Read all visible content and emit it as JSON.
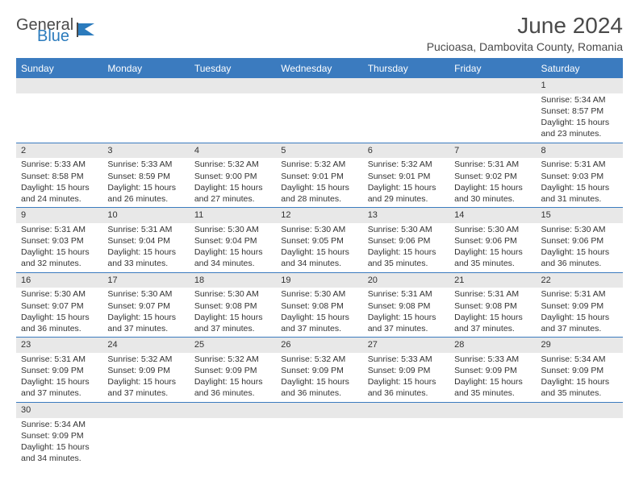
{
  "logo": {
    "general": "General",
    "blue": "Blue"
  },
  "title": "June 2024",
  "subtitle": "Pucioasa, Dambovita County, Romania",
  "header_bg": "#3b7bbf",
  "header_fg": "#ffffff",
  "daynum_bg": "#e8e8e8",
  "rule_color": "#3b7bbf",
  "days": [
    "Sunday",
    "Monday",
    "Tuesday",
    "Wednesday",
    "Thursday",
    "Friday",
    "Saturday"
  ],
  "weeks": [
    [
      null,
      null,
      null,
      null,
      null,
      null,
      {
        "n": "1",
        "sr": "5:34 AM",
        "ss": "8:57 PM",
        "dl": "15 hours and 23 minutes."
      }
    ],
    [
      {
        "n": "2",
        "sr": "5:33 AM",
        "ss": "8:58 PM",
        "dl": "15 hours and 24 minutes."
      },
      {
        "n": "3",
        "sr": "5:33 AM",
        "ss": "8:59 PM",
        "dl": "15 hours and 26 minutes."
      },
      {
        "n": "4",
        "sr": "5:32 AM",
        "ss": "9:00 PM",
        "dl": "15 hours and 27 minutes."
      },
      {
        "n": "5",
        "sr": "5:32 AM",
        "ss": "9:01 PM",
        "dl": "15 hours and 28 minutes."
      },
      {
        "n": "6",
        "sr": "5:32 AM",
        "ss": "9:01 PM",
        "dl": "15 hours and 29 minutes."
      },
      {
        "n": "7",
        "sr": "5:31 AM",
        "ss": "9:02 PM",
        "dl": "15 hours and 30 minutes."
      },
      {
        "n": "8",
        "sr": "5:31 AM",
        "ss": "9:03 PM",
        "dl": "15 hours and 31 minutes."
      }
    ],
    [
      {
        "n": "9",
        "sr": "5:31 AM",
        "ss": "9:03 PM",
        "dl": "15 hours and 32 minutes."
      },
      {
        "n": "10",
        "sr": "5:31 AM",
        "ss": "9:04 PM",
        "dl": "15 hours and 33 minutes."
      },
      {
        "n": "11",
        "sr": "5:30 AM",
        "ss": "9:04 PM",
        "dl": "15 hours and 34 minutes."
      },
      {
        "n": "12",
        "sr": "5:30 AM",
        "ss": "9:05 PM",
        "dl": "15 hours and 34 minutes."
      },
      {
        "n": "13",
        "sr": "5:30 AM",
        "ss": "9:06 PM",
        "dl": "15 hours and 35 minutes."
      },
      {
        "n": "14",
        "sr": "5:30 AM",
        "ss": "9:06 PM",
        "dl": "15 hours and 35 minutes."
      },
      {
        "n": "15",
        "sr": "5:30 AM",
        "ss": "9:06 PM",
        "dl": "15 hours and 36 minutes."
      }
    ],
    [
      {
        "n": "16",
        "sr": "5:30 AM",
        "ss": "9:07 PM",
        "dl": "15 hours and 36 minutes."
      },
      {
        "n": "17",
        "sr": "5:30 AM",
        "ss": "9:07 PM",
        "dl": "15 hours and 37 minutes."
      },
      {
        "n": "18",
        "sr": "5:30 AM",
        "ss": "9:08 PM",
        "dl": "15 hours and 37 minutes."
      },
      {
        "n": "19",
        "sr": "5:30 AM",
        "ss": "9:08 PM",
        "dl": "15 hours and 37 minutes."
      },
      {
        "n": "20",
        "sr": "5:31 AM",
        "ss": "9:08 PM",
        "dl": "15 hours and 37 minutes."
      },
      {
        "n": "21",
        "sr": "5:31 AM",
        "ss": "9:08 PM",
        "dl": "15 hours and 37 minutes."
      },
      {
        "n": "22",
        "sr": "5:31 AM",
        "ss": "9:09 PM",
        "dl": "15 hours and 37 minutes."
      }
    ],
    [
      {
        "n": "23",
        "sr": "5:31 AM",
        "ss": "9:09 PM",
        "dl": "15 hours and 37 minutes."
      },
      {
        "n": "24",
        "sr": "5:32 AM",
        "ss": "9:09 PM",
        "dl": "15 hours and 37 minutes."
      },
      {
        "n": "25",
        "sr": "5:32 AM",
        "ss": "9:09 PM",
        "dl": "15 hours and 36 minutes."
      },
      {
        "n": "26",
        "sr": "5:32 AM",
        "ss": "9:09 PM",
        "dl": "15 hours and 36 minutes."
      },
      {
        "n": "27",
        "sr": "5:33 AM",
        "ss": "9:09 PM",
        "dl": "15 hours and 36 minutes."
      },
      {
        "n": "28",
        "sr": "5:33 AM",
        "ss": "9:09 PM",
        "dl": "15 hours and 35 minutes."
      },
      {
        "n": "29",
        "sr": "5:34 AM",
        "ss": "9:09 PM",
        "dl": "15 hours and 35 minutes."
      }
    ],
    [
      {
        "n": "30",
        "sr": "5:34 AM",
        "ss": "9:09 PM",
        "dl": "15 hours and 34 minutes."
      },
      null,
      null,
      null,
      null,
      null,
      null
    ]
  ],
  "labels": {
    "sunrise": "Sunrise:",
    "sunset": "Sunset:",
    "daylight": "Daylight:"
  }
}
